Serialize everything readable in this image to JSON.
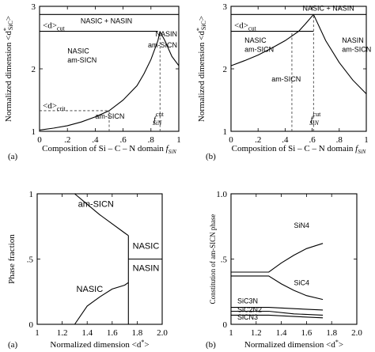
{
  "chart_data": [
    {
      "panel": "(a)",
      "type": "line",
      "xlabel_parts": [
        "Composition of Si",
        "C",
        "N domain ",
        "f",
        "SiN"
      ],
      "ylabel_parts": [
        "Normalized dimension <d",
        "*",
        "SiC",
        ">"
      ],
      "xlim": [
        0,
        1
      ],
      "ylim": [
        1,
        3
      ],
      "xticks": [
        "0",
        ".2",
        ".4",
        ".6",
        ".8",
        "1"
      ],
      "yticks": [
        "1",
        "2",
        "3"
      ],
      "hlines": [
        {
          "y": 2.87
        },
        {
          "y": 2.6,
          "label": "<d>cut",
          "label_main": "<d>",
          "label_sub": "cut",
          "from": 0,
          "to": 0.85
        }
      ],
      "dashed": [
        {
          "from": [
            0,
            1.33
          ],
          "to": [
            0.5,
            1.33
          ],
          "label": "<d>crit",
          "label_main": "<d>",
          "label_sub": "crit"
        },
        {
          "from": [
            0.5,
            1.0
          ],
          "to": [
            0.5,
            1.33
          ]
        },
        {
          "from": [
            0.865,
            1.0
          ],
          "to": [
            0.865,
            2.6
          ]
        }
      ],
      "series": [
        {
          "x": [
            0.0,
            0.1,
            0.2,
            0.3,
            0.4,
            0.5,
            0.6,
            0.7,
            0.75,
            0.8,
            0.85,
            0.865
          ],
          "y": [
            1.02,
            1.05,
            1.09,
            1.15,
            1.23,
            1.33,
            1.5,
            1.73,
            1.92,
            2.15,
            2.45,
            2.6
          ]
        },
        {
          "x": [
            0.865,
            0.9,
            0.95,
            1.0
          ],
          "y": [
            2.6,
            2.45,
            2.2,
            2.05
          ]
        }
      ],
      "annotations": [
        {
          "text": "NASIC + NASIN",
          "x": 0.48,
          "y": 2.73
        },
        {
          "text": "NASIN",
          "x": 1.0,
          "y": 2.52
        },
        {
          "text": "am-SICN",
          "x": 1.0,
          "y": 2.34
        },
        {
          "text": "NASIC",
          "x": 0.2,
          "y": 2.25
        },
        {
          "text": "am-SICN",
          "x": 0.2,
          "y": 2.1
        },
        {
          "text": "am-SICN",
          "x": 0.4,
          "y": 1.2
        },
        {
          "text": "f",
          "sub": "SiN",
          "sup": "cut",
          "x": 0.84,
          "y": 1.05
        }
      ]
    },
    {
      "panel": "(b)",
      "type": "line",
      "xlabel_parts": [
        "Composition of Si",
        "C",
        "N domain ",
        "f",
        "SiN"
      ],
      "ylabel_parts": [
        "Normalized dimension <d",
        "*",
        "SiC",
        ">"
      ],
      "xlim": [
        0,
        1
      ],
      "ylim": [
        1,
        3
      ],
      "xticks": [
        "0",
        ".2",
        ".4",
        ".6",
        ".8",
        "1"
      ],
      "yticks": [
        "1",
        "2",
        "3"
      ],
      "hlines": [
        {
          "y": 2.87
        },
        {
          "y": 2.6,
          "label": "<d>cut",
          "label_main": "<d>",
          "label_sub": "cut",
          "from": 0,
          "to": 0.61
        }
      ],
      "dashed": [
        {
          "from": [
            0.45,
            1.0
          ],
          "to": [
            0.45,
            2.6
          ]
        },
        {
          "from": [
            0.61,
            1.0
          ],
          "to": [
            0.61,
            2.87
          ]
        }
      ],
      "series": [
        {
          "x": [
            0.0,
            0.1,
            0.2,
            0.3,
            0.4,
            0.5,
            0.55,
            0.61
          ],
          "y": [
            2.05,
            2.13,
            2.22,
            2.33,
            2.45,
            2.6,
            2.72,
            2.87
          ]
        },
        {
          "x": [
            0.61,
            0.7,
            0.8,
            0.9,
            1.0
          ],
          "y": [
            2.87,
            2.45,
            2.1,
            1.82,
            1.6
          ]
        }
      ],
      "annotations": [
        {
          "text": "NASIC + NASIN",
          "x": 0.72,
          "y": 2.93
        },
        {
          "text": "NASIC",
          "x": 0.1,
          "y": 2.42
        },
        {
          "text": "am-SICN",
          "x": 0.1,
          "y": 2.27
        },
        {
          "text": "NASIN",
          "x": 0.82,
          "y": 2.42
        },
        {
          "text": "am-SICN",
          "x": 0.82,
          "y": 2.27
        },
        {
          "text": "am-SICN",
          "x": 0.3,
          "y": 1.8
        },
        {
          "text": "f",
          "sub": "SiN",
          "sup": "cut",
          "x": 0.61,
          "y": 1.05
        }
      ]
    },
    {
      "panel": "(a)",
      "type": "area",
      "xlabel_parts": [
        "Normalized dimension <d",
        "*",
        ">"
      ],
      "ylabel": "Phase fraction",
      "xlim": [
        1.0,
        2.0
      ],
      "ylim": [
        0,
        1
      ],
      "xticks": [
        "1",
        "1.2",
        "1.4",
        "1.6",
        "1.8",
        "2.0"
      ],
      "yticks": [
        "0",
        ".5",
        "1"
      ],
      "boundaries": [
        {
          "name": "am-SICN upper",
          "x": [
            1.3,
            1.4,
            1.5,
            1.6,
            1.7,
            1.73
          ],
          "y": [
            1.0,
            0.92,
            0.84,
            0.77,
            0.7,
            0.68
          ]
        },
        {
          "name": "NASIC upper",
          "x": [
            1.3,
            1.4,
            1.5,
            1.6,
            1.7,
            1.73
          ],
          "y": [
            0.0,
            0.14,
            0.21,
            0.27,
            0.3,
            0.32
          ]
        },
        {
          "name": "transition",
          "x": [
            1.73,
            1.73
          ],
          "y": [
            0.0,
            0.68
          ]
        },
        {
          "name": "NASIC/NASIN",
          "x": [
            1.73,
            2.0
          ],
          "y": [
            0.5,
            0.5
          ]
        }
      ],
      "annotations": [
        {
          "text": "am-SICN",
          "x": 1.47,
          "y": 0.9
        },
        {
          "text": "NASIC",
          "x": 1.42,
          "y": 0.25
        },
        {
          "text": "NASIC",
          "x": 1.87,
          "y": 0.58
        },
        {
          "text": "NASIN",
          "x": 1.87,
          "y": 0.41
        }
      ]
    },
    {
      "panel": "(b)",
      "type": "line",
      "xlabel_parts": [
        "Normalized dimension <d",
        "*",
        ">"
      ],
      "ylabel": "Constitution of am-SICN phase",
      "xlim": [
        1.0,
        2.0
      ],
      "ylim": [
        0,
        1
      ],
      "xticks": [
        "1",
        "1.2",
        "1.4",
        "1.6",
        "1.8",
        "2.0"
      ],
      "yticks": [
        "0",
        ".5",
        "1.0"
      ],
      "series": [
        {
          "name": "SiN4",
          "x": [
            1.0,
            1.3,
            1.4,
            1.5,
            1.6,
            1.73
          ],
          "y": [
            0.4,
            0.4,
            0.47,
            0.53,
            0.58,
            0.62
          ]
        },
        {
          "name": "SiC4",
          "x": [
            1.0,
            1.3,
            1.4,
            1.5,
            1.6,
            1.73
          ],
          "y": [
            0.37,
            0.37,
            0.31,
            0.26,
            0.22,
            0.19
          ]
        },
        {
          "name": "SiC3N",
          "x": [
            1.0,
            1.3,
            1.5,
            1.73
          ],
          "y": [
            0.13,
            0.13,
            0.12,
            0.11
          ]
        },
        {
          "name": "SiC2N2",
          "x": [
            1.0,
            1.3,
            1.5,
            1.73
          ],
          "y": [
            0.1,
            0.1,
            0.08,
            0.07
          ]
        },
        {
          "name": "SiCN3",
          "x": [
            1.0,
            1.3,
            1.5,
            1.73
          ],
          "y": [
            0.07,
            0.07,
            0.06,
            0.05
          ]
        }
      ],
      "annotations": [
        {
          "text": "SiN4",
          "x": 1.5,
          "y": 0.74
        },
        {
          "text": "SiC4",
          "x": 1.5,
          "y": 0.3
        },
        {
          "text": "SiC3N",
          "x": 1.05,
          "y": 0.16
        },
        {
          "text": "SiC2N2",
          "x": 1.05,
          "y": 0.095
        },
        {
          "text": "SiCN3",
          "x": 1.05,
          "y": 0.035
        }
      ]
    }
  ]
}
